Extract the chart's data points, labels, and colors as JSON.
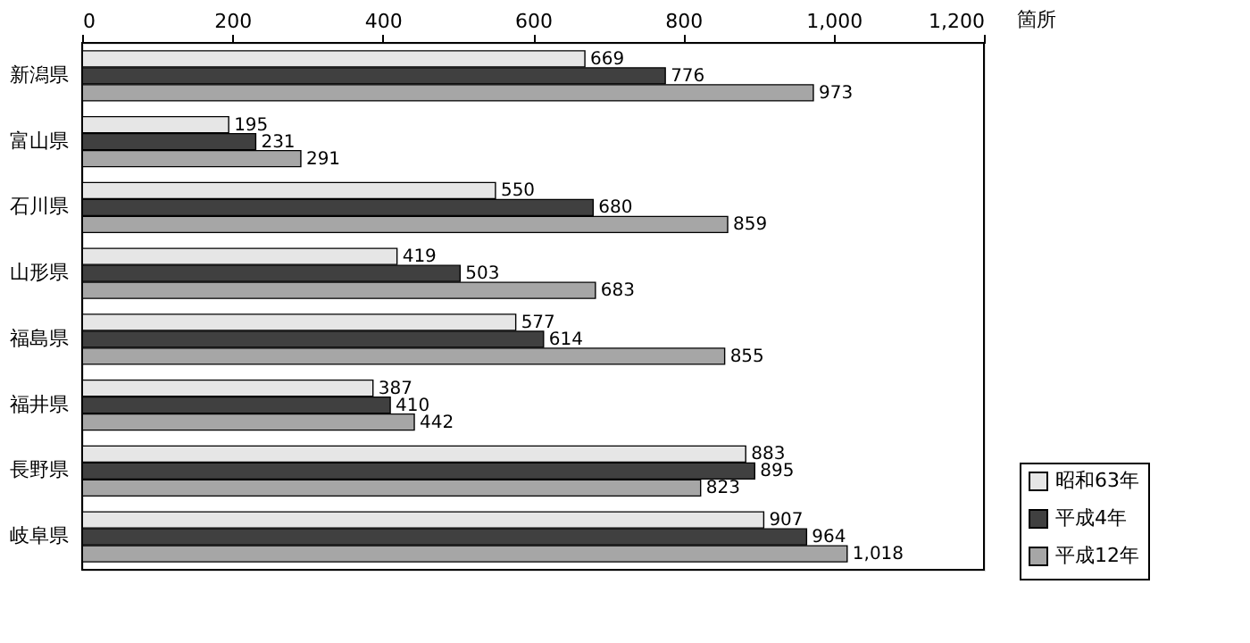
{
  "chart_data": {
    "type": "bar",
    "orientation": "horizontal",
    "xlabel": "箇所",
    "categories": [
      "新潟県",
      "富山県",
      "石川県",
      "山形県",
      "福島県",
      "福井県",
      "長野県",
      "岐阜県"
    ],
    "series": [
      {
        "name": "昭和63年",
        "color": "#e6e6e6",
        "values": [
          669,
          195,
          550,
          419,
          577,
          387,
          883,
          907
        ],
        "value_labels": [
          "669",
          "195",
          "550",
          "419",
          "577",
          "387",
          "883",
          "907"
        ]
      },
      {
        "name": "平成4年",
        "color": "#404040",
        "values": [
          776,
          231,
          680,
          503,
          614,
          410,
          895,
          964
        ],
        "value_labels": [
          "776",
          "231",
          "680",
          "503",
          "614",
          "410",
          "895",
          "964"
        ]
      },
      {
        "name": "平成12年",
        "color": "#a6a6a6",
        "values": [
          973,
          291,
          859,
          683,
          855,
          442,
          823,
          1018
        ],
        "value_labels": [
          "973",
          "291",
          "859",
          "683",
          "855",
          "442",
          "823",
          "1,018"
        ]
      }
    ],
    "xlim": [
      0,
      1200
    ],
    "xticks": [
      0,
      200,
      400,
      600,
      800,
      {
        "value": 1000,
        "label": "1,000"
      },
      {
        "value": 1200,
        "label": "1,200"
      }
    ],
    "grid": false,
    "legend": "bottom right"
  }
}
